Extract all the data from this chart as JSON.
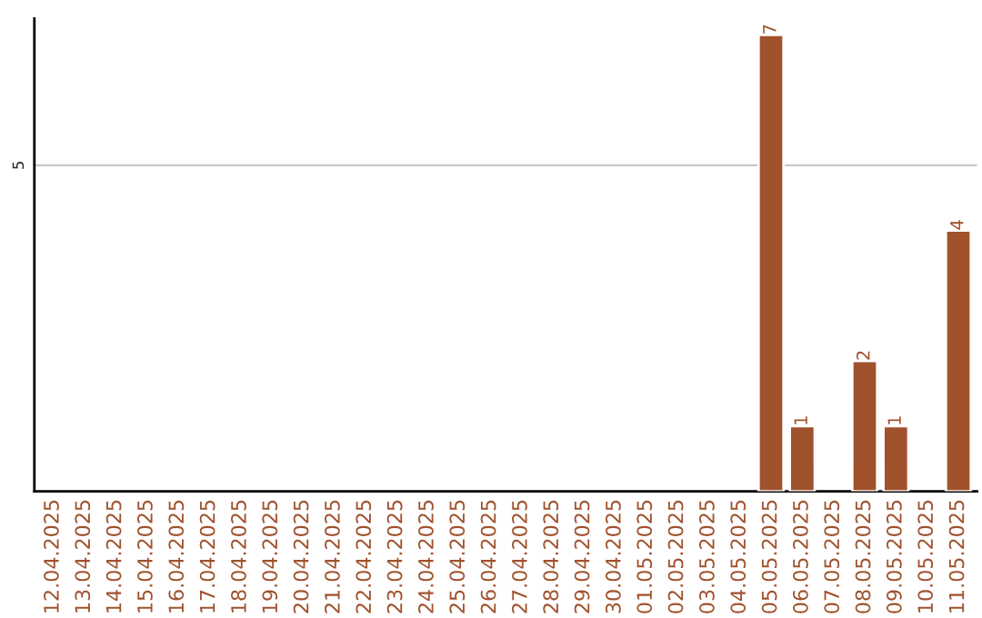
{
  "chart_data": {
    "type": "bar",
    "categories": [
      "12.04.2025",
      "13.04.2025",
      "14.04.2025",
      "15.04.2025",
      "16.04.2025",
      "17.04.2025",
      "18.04.2025",
      "19.04.2025",
      "20.04.2025",
      "21.04.2025",
      "22.04.2025",
      "23.04.2025",
      "24.04.2025",
      "25.04.2025",
      "26.04.2025",
      "27.04.2025",
      "28.04.2025",
      "29.04.2025",
      "30.04.2025",
      "01.05.2025",
      "02.05.2025",
      "03.05.2025",
      "04.05.2025",
      "05.05.2025",
      "06.05.2025",
      "07.05.2025",
      "08.05.2025",
      "09.05.2025",
      "10.05.2025",
      "11.05.2025"
    ],
    "values": [
      null,
      null,
      null,
      null,
      null,
      null,
      null,
      null,
      null,
      null,
      null,
      null,
      null,
      null,
      null,
      null,
      null,
      null,
      null,
      null,
      null,
      null,
      null,
      7,
      1,
      null,
      2,
      1,
      null,
      4
    ],
    "data_labels": true,
    "color": "#a0522d",
    "ylim": [
      0,
      7.25
    ],
    "yticks": [
      5
    ],
    "grid": "y"
  }
}
